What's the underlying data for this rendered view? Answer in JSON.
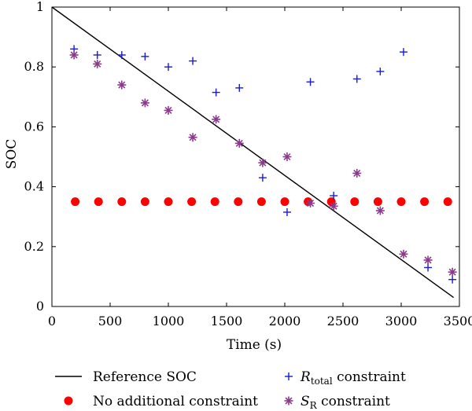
{
  "chart_data": {
    "type": "scatter",
    "xlabel": "Time (s)",
    "ylabel": "SOC",
    "xlim": [
      0,
      3500
    ],
    "ylim": [
      0,
      1
    ],
    "xticks": [
      0,
      500,
      1000,
      1500,
      2000,
      2500,
      3000,
      3500
    ],
    "yticks": [
      0,
      0.2,
      0.4,
      0.6,
      0.8,
      1
    ],
    "xtick_labels": [
      "0",
      "500",
      "1000",
      "1500",
      "2000",
      "2500",
      "3000",
      "3500"
    ],
    "ytick_labels": [
      "0",
      "0.2",
      "0.4",
      "0.6",
      "0.8",
      "1"
    ],
    "grid": false,
    "legend_placement": "below plot, two columns",
    "series": [
      {
        "name": "Reference SOC",
        "marker": "line",
        "color": "#000000",
        "points": [
          [
            0,
            1.0
          ],
          [
            3450,
            0.03
          ]
        ]
      },
      {
        "name": "No additional constraint",
        "marker": "dot",
        "color": "#ff0000",
        "points": [
          [
            200,
            0.35
          ],
          [
            400,
            0.35
          ],
          [
            600,
            0.35
          ],
          [
            800,
            0.35
          ],
          [
            1000,
            0.35
          ],
          [
            1200,
            0.35
          ],
          [
            1400,
            0.35
          ],
          [
            1600,
            0.35
          ],
          [
            1800,
            0.35
          ],
          [
            2000,
            0.35
          ],
          [
            2200,
            0.35
          ],
          [
            2400,
            0.35
          ],
          [
            2600,
            0.35
          ],
          [
            2800,
            0.35
          ],
          [
            3000,
            0.35
          ],
          [
            3200,
            0.35
          ],
          [
            3400,
            0.35
          ]
        ]
      },
      {
        "name_main": "R",
        "name_sub": "total",
        "name_rest": " constraint",
        "marker": "plus",
        "color": "#1a1ad6",
        "points": [
          [
            190,
            0.86
          ],
          [
            390,
            0.84
          ],
          [
            600,
            0.84
          ],
          [
            800,
            0.835
          ],
          [
            1000,
            0.8
          ],
          [
            1210,
            0.82
          ],
          [
            1410,
            0.715
          ],
          [
            1610,
            0.73
          ],
          [
            1810,
            0.43
          ],
          [
            2020,
            0.315
          ],
          [
            2220,
            0.75
          ],
          [
            2420,
            0.37
          ],
          [
            2620,
            0.76
          ],
          [
            2820,
            0.785
          ],
          [
            3020,
            0.85
          ],
          [
            3230,
            0.13
          ],
          [
            3440,
            0.09
          ]
        ]
      },
      {
        "name_main": "S",
        "name_sub": "R",
        "name_rest": " constraint",
        "marker": "asterisk",
        "color": "#8b3a8b",
        "points": [
          [
            190,
            0.84
          ],
          [
            390,
            0.81
          ],
          [
            600,
            0.74
          ],
          [
            800,
            0.68
          ],
          [
            1000,
            0.655
          ],
          [
            1210,
            0.565
          ],
          [
            1410,
            0.625
          ],
          [
            1610,
            0.545
          ],
          [
            1810,
            0.48
          ],
          [
            2020,
            0.5
          ],
          [
            2220,
            0.345
          ],
          [
            2420,
            0.335
          ],
          [
            2620,
            0.445
          ],
          [
            2820,
            0.32
          ],
          [
            3020,
            0.175
          ],
          [
            3230,
            0.155
          ],
          [
            3440,
            0.115
          ]
        ]
      }
    ]
  }
}
